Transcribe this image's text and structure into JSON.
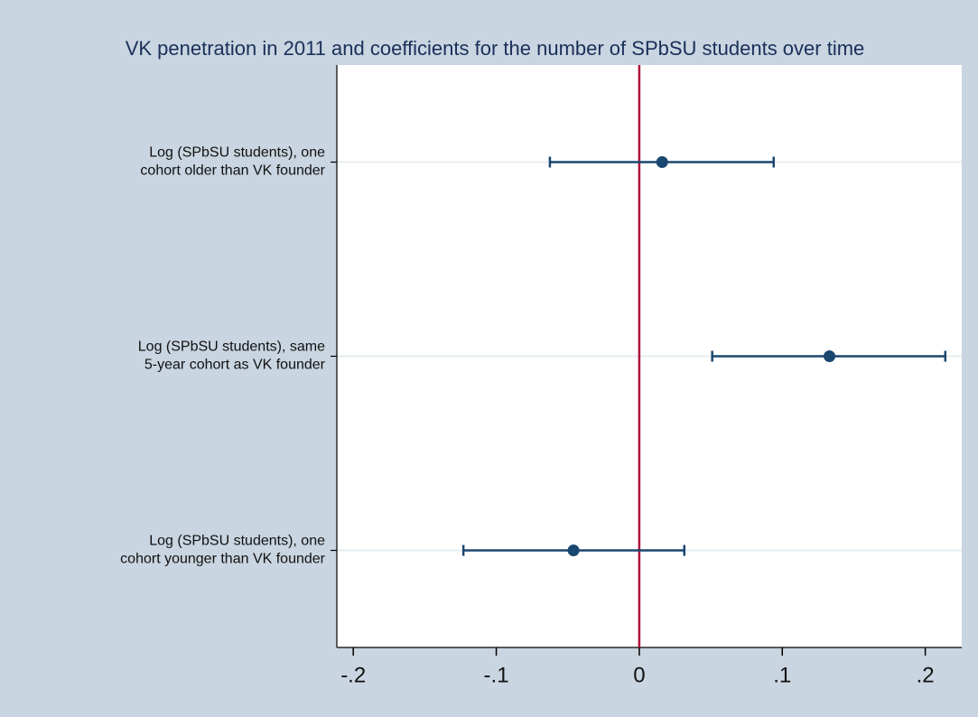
{
  "chart_data": {
    "type": "coefplot",
    "title": "VK penetration in 2011 and coefficients for the number of SPbSU students over time",
    "categories": [
      [
        "Log (SPbSU students), one",
        "cohort older  than VK founder"
      ],
      [
        "Log (SPbSU students), same",
        "5-year cohort as VK founder"
      ],
      [
        "Log (SPbSU students), one",
        "cohort younger than VK founder"
      ]
    ],
    "values": [
      0.016,
      0.133,
      -0.046
    ],
    "lower": [
      -0.0625,
      0.051,
      -0.123
    ],
    "upper": [
      0.094,
      0.214,
      0.0315
    ],
    "color": "#1a476f",
    "reference_line": 0,
    "reference_color": "#b0103c",
    "xlim": [
      -0.2115,
      0.2255
    ],
    "xticks": [
      {
        "value": -0.2,
        "label": "-.2"
      },
      {
        "value": -0.1,
        "label": "-.1"
      },
      0,
      {
        "value": 0.1,
        "label": ".1"
      },
      {
        "value": 0.2,
        "label": ".2"
      }
    ],
    "grid": true
  }
}
